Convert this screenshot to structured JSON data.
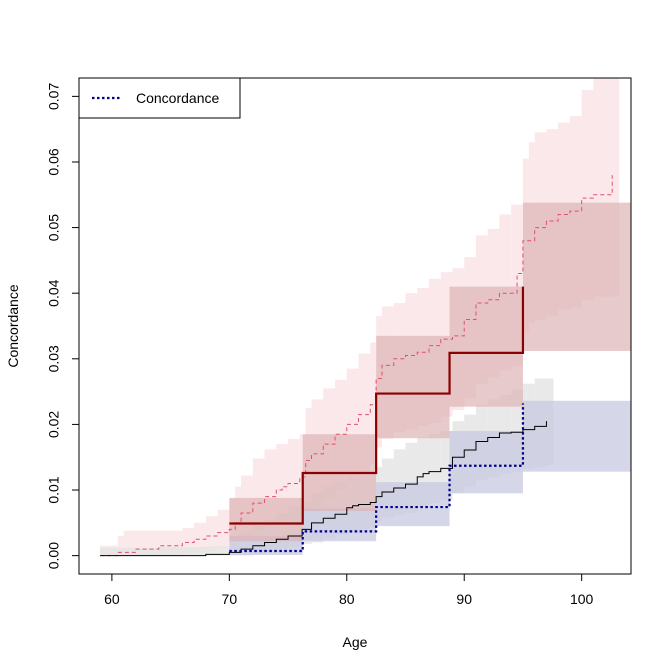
{
  "chart_data": {
    "type": "line",
    "title": "",
    "xlabel": "Age",
    "ylabel": "Concordance",
    "xlim": [
      57.2,
      104.2
    ],
    "ylim": [
      -0.0028,
      0.0728
    ],
    "x_ticks": [
      "60",
      "70",
      "80",
      "90",
      "100"
    ],
    "x_tick_values": [
      60,
      70,
      80,
      90,
      100
    ],
    "y_ticks": [
      "0.00",
      "0.01",
      "0.02",
      "0.03",
      "0.04",
      "0.05",
      "0.06",
      "0.07"
    ],
    "y_tick_values": [
      0,
      0.01,
      0.02,
      0.03,
      0.04,
      0.05,
      0.06,
      0.07
    ],
    "grid": false,
    "legend": {
      "position": "top-left",
      "entries": [
        {
          "label": "Concordance",
          "color": "#00008B",
          "style": "dotted"
        }
      ]
    },
    "colors": {
      "red_dark": "#8B0000",
      "red_dashed": "#E05070",
      "red_light_band": "#F9E4E8",
      "red_mid_band": "#DDB3B5",
      "black_line": "#000000",
      "gray_band": "#E3E3E3",
      "gray_band_lower": "#D4D4D4",
      "blue_line": "#00008B",
      "blue_band": "#C8C8E2",
      "blue_band_lower": "#B9B9DA"
    },
    "series": [
      {
        "id": "binned_red",
        "step_x": [
          70,
          76.25,
          82.5,
          88.75,
          95
        ],
        "values": [
          0.0049,
          0.0126,
          0.0247,
          0.0309,
          0.041
        ],
        "band_upper": [
          0.0088,
          0.0185,
          0.0335,
          0.041,
          0.0538
        ],
        "band_lower": [
          0.0022,
          0.0068,
          0.0179,
          0.0227,
          0.0312
        ],
        "x_end": 104.2
      },
      {
        "id": "binned_blue",
        "step_x": [
          70,
          76.25,
          82.5,
          88.75,
          95
        ],
        "values": [
          0.0007,
          0.0037,
          0.0074,
          0.0137,
          0.0232
        ],
        "band_upper": [
          0.003,
          0.0072,
          0.0112,
          0.019,
          0.0236
        ],
        "band_lower": [
          0.0001,
          0.0022,
          0.0045,
          0.0095,
          0.0128
        ],
        "x_end": 104.2
      },
      {
        "id": "cumulative_red_dashed",
        "x": [
          59,
          60.5,
          62,
          64,
          66,
          67,
          68,
          69,
          70,
          70.5,
          71,
          72,
          73,
          74,
          74.5,
          75,
          76,
          76.5,
          77,
          78,
          79,
          80,
          81,
          82,
          82.5,
          83,
          84,
          85,
          86,
          87,
          88,
          89,
          90,
          91,
          92,
          93,
          94,
          94.5,
          95,
          96,
          97,
          98,
          99,
          100,
          101,
          102,
          102.6
        ],
        "values": [
          0,
          0.0005,
          0.001,
          0.0015,
          0.002,
          0.0025,
          0.003,
          0.0035,
          0.004,
          0.005,
          0.0065,
          0.008,
          0.009,
          0.01,
          0.0105,
          0.011,
          0.012,
          0.0145,
          0.0155,
          0.017,
          0.0185,
          0.02,
          0.0215,
          0.023,
          0.027,
          0.029,
          0.03,
          0.0305,
          0.031,
          0.032,
          0.033,
          0.0335,
          0.036,
          0.0385,
          0.039,
          0.04,
          0.04,
          0.043,
          0.048,
          0.05,
          0.051,
          0.052,
          0.0525,
          0.0545,
          0.055,
          0.055,
          0.058
        ]
      },
      {
        "id": "cumulative_black",
        "x": [
          59,
          68,
          70,
          71,
          72,
          73,
          74,
          75,
          76.2,
          77,
          78,
          79,
          80,
          80.5,
          81,
          82,
          82.5,
          83,
          84,
          85,
          86,
          86.5,
          87,
          88,
          89,
          90,
          91,
          92,
          93,
          94,
          95,
          96,
          97
        ],
        "values": [
          0,
          0.0002,
          0.0005,
          0.001,
          0.0015,
          0.002,
          0.0025,
          0.003,
          0.004,
          0.005,
          0.0057,
          0.0063,
          0.0073,
          0.0076,
          0.0078,
          0.0081,
          0.009,
          0.0097,
          0.0103,
          0.0109,
          0.012,
          0.0125,
          0.0128,
          0.0133,
          0.015,
          0.0161,
          0.0174,
          0.018,
          0.0187,
          0.0188,
          0.0192,
          0.0197,
          0.0205
        ]
      }
    ],
    "cumulative_bands": [
      {
        "id": "red_dashed_ci",
        "x": [
          59,
          60.5,
          61,
          62,
          64,
          66,
          67,
          68,
          69,
          70,
          70.5,
          71,
          72,
          73,
          74,
          75,
          76,
          76.5,
          77,
          78,
          79,
          80,
          81,
          82,
          82.5,
          83,
          84,
          85,
          86,
          87,
          88,
          89,
          90,
          91,
          92,
          93,
          94,
          95,
          95.5,
          96,
          97,
          98,
          99,
          100,
          101,
          102,
          102.6
        ],
        "upper": [
          0.0015,
          0.003,
          0.0038,
          0.0038,
          0.0038,
          0.0042,
          0.005,
          0.006,
          0.007,
          0.0086,
          0.0105,
          0.0122,
          0.0148,
          0.0162,
          0.017,
          0.0178,
          0.0185,
          0.0225,
          0.0238,
          0.0255,
          0.0268,
          0.0285,
          0.0308,
          0.0325,
          0.0365,
          0.038,
          0.0385,
          0.04,
          0.0408,
          0.0422,
          0.0432,
          0.0438,
          0.0455,
          0.0488,
          0.0498,
          0.052,
          0.0535,
          0.0605,
          0.063,
          0.0645,
          0.065,
          0.066,
          0.067,
          0.071,
          0.0728,
          0.0728,
          0.0728
        ],
        "lower": [
          0,
          0,
          0,
          0,
          0,
          0.0003,
          0.0005,
          0.0007,
          0.0012,
          0.0018,
          0.0022,
          0.003,
          0.0038,
          0.0044,
          0.0048,
          0.0055,
          0.006,
          0.0065,
          0.0075,
          0.0088,
          0.01,
          0.0115,
          0.0125,
          0.014,
          0.0165,
          0.0178,
          0.0188,
          0.0192,
          0.0198,
          0.0202,
          0.0212,
          0.0222,
          0.024,
          0.0262,
          0.0272,
          0.0282,
          0.0288,
          0.034,
          0.0355,
          0.036,
          0.0365,
          0.0375,
          0.0378,
          0.039,
          0.0395,
          0.0395,
          0.0395
        ]
      },
      {
        "id": "black_ci",
        "x": [
          59,
          64,
          68,
          70,
          71,
          72,
          73,
          74,
          75,
          76.2,
          77,
          78,
          79,
          80,
          81,
          82,
          82.5,
          83,
          84,
          85,
          86,
          87,
          88,
          89,
          90,
          91,
          92,
          93,
          94,
          95,
          96,
          97
        ],
        "upper": [
          0.0012,
          0.0013,
          0.0014,
          0.0025,
          0.0035,
          0.0045,
          0.0055,
          0.0065,
          0.0075,
          0.008,
          0.0095,
          0.0105,
          0.0112,
          0.0118,
          0.0122,
          0.0125,
          0.0135,
          0.0148,
          0.0162,
          0.0172,
          0.018,
          0.0185,
          0.019,
          0.0205,
          0.0215,
          0.023,
          0.0238,
          0.0245,
          0.0253,
          0.0262,
          0.027,
          0.027
        ],
        "lower": [
          0,
          0,
          0,
          0,
          0,
          0.0003,
          0.0006,
          0.001,
          0.0013,
          0.0018,
          0.002,
          0.0026,
          0.0032,
          0.0035,
          0.004,
          0.0042,
          0.0052,
          0.0058,
          0.0062,
          0.0065,
          0.0075,
          0.008,
          0.0085,
          0.0095,
          0.0105,
          0.0115,
          0.012,
          0.0125,
          0.0128,
          0.0132,
          0.0135,
          0.0138
        ]
      }
    ]
  }
}
